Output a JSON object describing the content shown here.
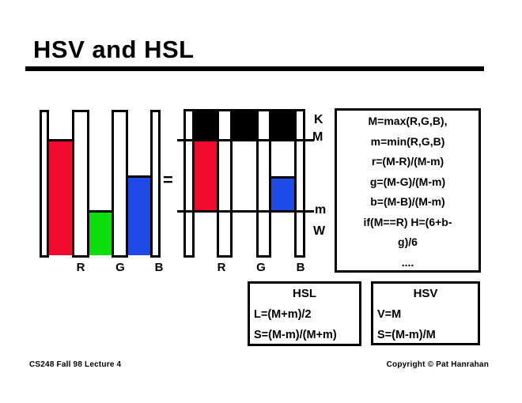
{
  "title": "HSV and HSL",
  "equals": "=",
  "charts": {
    "axis_labels": [
      "R",
      "G",
      "B"
    ],
    "level_labels": {
      "top": "K",
      "max": "M",
      "min": "m",
      "bottom": "W"
    },
    "values": {
      "R": 0.81,
      "G": 0.315,
      "B": 0.56
    },
    "colors": {
      "R": "#f30b2e",
      "G": "#0bdf0b",
      "B": "#1e4be8",
      "cap": "#000000"
    }
  },
  "formula_box": {
    "lines": [
      "M=max(R,G,B),",
      "m=min(R,G,B)",
      "r=(M-R)/(M-m)",
      "g=(M-G)/(M-m)",
      "b=(M-B)/(M-m)",
      "if(M==R) H=(6+b-",
      "g)/6",
      "...."
    ]
  },
  "hsl_box": {
    "title": "HSL",
    "lines": [
      "L=(M+m)/2",
      "S=(M-m)/(M+m)"
    ]
  },
  "hsv_box": {
    "title": "HSV",
    "lines": [
      "V=M",
      "S=(M-m)/M"
    ]
  },
  "footer": {
    "left": "CS248 Fall 98 Lecture 4",
    "right": "Copyright © Pat Hanrahan"
  },
  "chart_data": [
    {
      "type": "bar",
      "title": "Raw RGB component levels",
      "categories": [
        "R",
        "G",
        "B"
      ],
      "values": [
        0.81,
        0.315,
        0.56
      ],
      "ylim": [
        0,
        1
      ],
      "xlabel": "",
      "ylabel": "",
      "legend_position": "none",
      "grid": false
    },
    {
      "type": "bar",
      "title": "Same bars with derived levels K, M, m, W",
      "categories": [
        "R",
        "G",
        "B"
      ],
      "values": [
        0.81,
        0.315,
        0.56
      ],
      "ylim": [
        0,
        1
      ],
      "levels": {
        "K": 1.0,
        "M": 0.81,
        "m": 0.315,
        "W": 0.0
      },
      "annotations": [
        "black region from M up to K on every bar",
        "R filled red from m to M",
        "B filled blue from m up to b-level",
        "white below m down to W"
      ]
    }
  ]
}
